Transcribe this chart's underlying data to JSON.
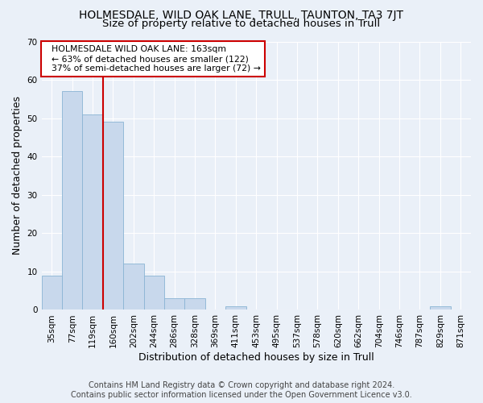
{
  "title": "HOLMESDALE, WILD OAK LANE, TRULL, TAUNTON, TA3 7JT",
  "subtitle": "Size of property relative to detached houses in Trull",
  "xlabel": "Distribution of detached houses by size in Trull",
  "ylabel": "Number of detached properties",
  "footer_line1": "Contains HM Land Registry data © Crown copyright and database right 2024.",
  "footer_line2": "Contains public sector information licensed under the Open Government Licence v3.0.",
  "bar_labels": [
    "35sqm",
    "77sqm",
    "119sqm",
    "160sqm",
    "202sqm",
    "244sqm",
    "286sqm",
    "328sqm",
    "369sqm",
    "411sqm",
    "453sqm",
    "495sqm",
    "537sqm",
    "578sqm",
    "620sqm",
    "662sqm",
    "704sqm",
    "746sqm",
    "787sqm",
    "829sqm",
    "871sqm"
  ],
  "bar_values": [
    9,
    57,
    51,
    49,
    12,
    9,
    3,
    3,
    0,
    1,
    0,
    0,
    0,
    0,
    0,
    0,
    0,
    0,
    0,
    1,
    0
  ],
  "bar_color": "#c8d8ec",
  "bar_edgecolor": "#8ab4d4",
  "red_line_x": 2.5,
  "red_line_label_title": "HOLMESDALE WILD OAK LANE: 163sqm",
  "red_line_label_line2": "← 63% of detached houses are smaller (122)",
  "red_line_label_line3": "37% of semi-detached houses are larger (72) →",
  "annotation_box_color": "#ffffff",
  "annotation_box_edgecolor": "#cc0000",
  "ylim": [
    0,
    70
  ],
  "yticks": [
    0,
    10,
    20,
    30,
    40,
    50,
    60,
    70
  ],
  "background_color": "#eaf0f8",
  "grid_color": "#ffffff",
  "title_fontsize": 10,
  "subtitle_fontsize": 9.5,
  "axis_label_fontsize": 9,
  "tick_fontsize": 7.5,
  "footer_fontsize": 7
}
